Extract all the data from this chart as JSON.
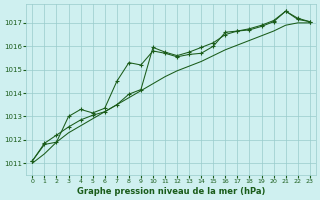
{
  "title": "Graphe pression niveau de la mer (hPa)",
  "bg_color": "#cff0f0",
  "grid_color": "#99cccc",
  "line_color": "#1a5c1a",
  "text_color": "#1a5c1a",
  "x_ticks": [
    0,
    1,
    2,
    3,
    4,
    5,
    6,
    7,
    8,
    9,
    10,
    11,
    12,
    13,
    14,
    15,
    16,
    17,
    18,
    19,
    20,
    21,
    22,
    23
  ],
  "ylim": [
    1010.5,
    1017.8
  ],
  "yticks": [
    1011,
    1012,
    1013,
    1014,
    1015,
    1016,
    1017
  ],
  "line1": [
    1011.1,
    1011.8,
    1011.9,
    1013.0,
    1013.3,
    1013.15,
    1013.35,
    1014.5,
    1015.3,
    1015.2,
    1015.8,
    1015.7,
    1015.55,
    1015.65,
    1015.7,
    1016.0,
    1016.6,
    1016.65,
    1016.7,
    1016.85,
    1017.05,
    1017.5,
    1017.15,
    1017.05
  ],
  "line2": [
    1011.1,
    1011.85,
    1012.2,
    1012.55,
    1012.85,
    1013.05,
    1013.2,
    1013.5,
    1013.95,
    1014.15,
    1015.95,
    1015.75,
    1015.6,
    1015.75,
    1015.95,
    1016.15,
    1016.5,
    1016.65,
    1016.75,
    1016.9,
    1017.1,
    1017.5,
    1017.2,
    1017.05
  ],
  "line3": [
    1011.0,
    1011.4,
    1011.9,
    1012.3,
    1012.6,
    1012.9,
    1013.2,
    1013.5,
    1013.8,
    1014.1,
    1014.4,
    1014.7,
    1014.95,
    1015.15,
    1015.35,
    1015.6,
    1015.85,
    1016.05,
    1016.25,
    1016.45,
    1016.65,
    1016.9,
    1017.0,
    1017.0
  ]
}
